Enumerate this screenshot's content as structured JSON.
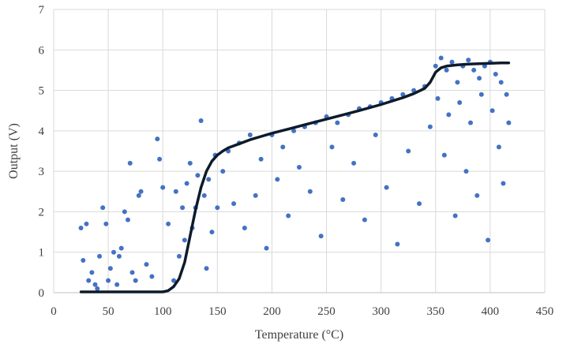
{
  "chart_data": {
    "type": "scatter",
    "title": "",
    "xlabel": "Temperature (°C)",
    "ylabel": "Output (V)",
    "xlim": [
      0,
      450
    ],
    "ylim": [
      0,
      7
    ],
    "xticks": [
      0,
      50,
      100,
      150,
      200,
      250,
      300,
      350,
      400,
      450
    ],
    "yticks": [
      0,
      1,
      2,
      3,
      4,
      5,
      6,
      7
    ],
    "grid": {
      "x": true,
      "y": true
    },
    "legend": "none",
    "colors": {
      "points": "#4472c4",
      "trend": "#0d1b2a"
    },
    "series": [
      {
        "kind": "scatter",
        "x": [
          25,
          27,
          30,
          32,
          35,
          38,
          40,
          42,
          45,
          48,
          50,
          52,
          55,
          58,
          60,
          62,
          65,
          68,
          70,
          72,
          75,
          78,
          80,
          85,
          90,
          95,
          97,
          100,
          105,
          110,
          112,
          115,
          118,
          120,
          122,
          125,
          127,
          130,
          132,
          135,
          138,
          140,
          142,
          145,
          148,
          150,
          155,
          160,
          165,
          170,
          175,
          180,
          185,
          190,
          195,
          200,
          205,
          210,
          215,
          220,
          225,
          230,
          235,
          240,
          245,
          250,
          255,
          260,
          265,
          270,
          275,
          280,
          285,
          290,
          295,
          300,
          305,
          310,
          315,
          320,
          325,
          330,
          335,
          340,
          345,
          350,
          352,
          355,
          358,
          360,
          362,
          365,
          368,
          370,
          372,
          375,
          378,
          380,
          382,
          385,
          388,
          390,
          392,
          395,
          398,
          400,
          402,
          405,
          408,
          410,
          412,
          415,
          417
        ],
        "y": [
          1.6,
          0.8,
          1.7,
          0.3,
          0.5,
          0.2,
          0.1,
          0.9,
          2.1,
          1.7,
          0.3,
          0.6,
          1.0,
          0.2,
          0.9,
          1.1,
          2.0,
          1.8,
          3.2,
          0.5,
          0.3,
          2.4,
          2.5,
          0.7,
          0.4,
          3.8,
          3.3,
          2.6,
          1.7,
          0.3,
          2.5,
          0.9,
          2.1,
          1.3,
          2.7,
          3.2,
          1.6,
          2.1,
          2.9,
          4.25,
          2.4,
          0.6,
          2.8,
          1.5,
          3.4,
          2.1,
          3.0,
          3.5,
          2.2,
          3.7,
          1.6,
          3.9,
          2.4,
          3.3,
          1.1,
          3.9,
          2.8,
          3.6,
          1.9,
          4.0,
          3.1,
          4.1,
          2.5,
          4.2,
          1.4,
          4.35,
          3.6,
          4.2,
          2.3,
          4.4,
          3.2,
          4.55,
          1.8,
          4.6,
          3.9,
          4.7,
          2.6,
          4.8,
          1.2,
          4.9,
          3.5,
          5.0,
          2.2,
          5.1,
          4.1,
          5.6,
          4.8,
          5.8,
          3.4,
          5.5,
          4.4,
          5.7,
          1.9,
          5.2,
          4.7,
          5.6,
          3.0,
          5.75,
          4.2,
          5.5,
          2.4,
          5.3,
          4.9,
          5.6,
          1.3,
          5.7,
          4.5,
          5.4,
          3.6,
          5.2,
          2.7,
          4.9,
          4.2
        ]
      },
      {
        "kind": "line",
        "x": [
          25,
          50,
          75,
          100,
          105,
          110,
          115,
          120,
          125,
          130,
          135,
          140,
          145,
          150,
          155,
          160,
          170,
          180,
          190,
          200,
          220,
          240,
          260,
          280,
          300,
          320,
          330,
          340,
          345,
          350,
          355,
          360,
          370,
          380,
          390,
          400,
          410,
          417
        ],
        "y": [
          0.02,
          0.02,
          0.02,
          0.02,
          0.05,
          0.15,
          0.35,
          0.75,
          1.4,
          2.05,
          2.6,
          3.0,
          3.25,
          3.4,
          3.5,
          3.58,
          3.68,
          3.78,
          3.86,
          3.94,
          4.08,
          4.22,
          4.36,
          4.5,
          4.65,
          4.82,
          4.92,
          5.05,
          5.2,
          5.45,
          5.56,
          5.6,
          5.63,
          5.65,
          5.66,
          5.67,
          5.68,
          5.68
        ]
      }
    ]
  }
}
